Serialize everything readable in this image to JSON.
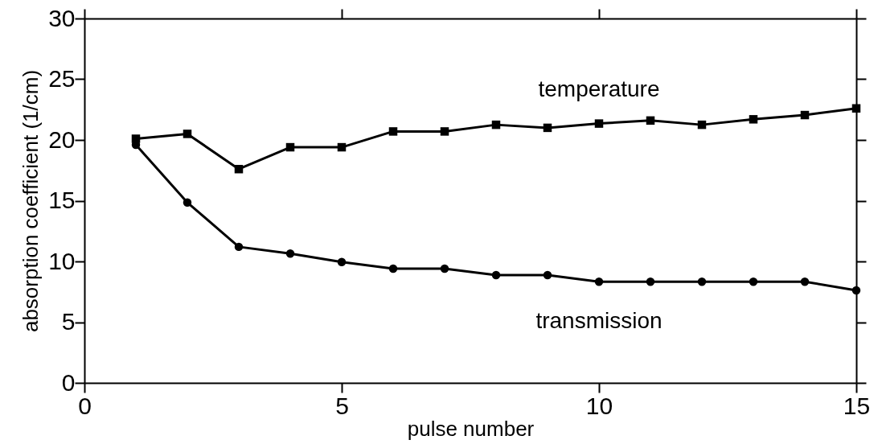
{
  "chart_data": {
    "type": "line",
    "xlabel": "pulse number",
    "ylabel": "absorption coefficient (1/cm)",
    "x": [
      1,
      2,
      3,
      4,
      5,
      6,
      7,
      8,
      9,
      10,
      11,
      12,
      13,
      14,
      15
    ],
    "series": [
      {
        "name": "temperature",
        "color": "#000000",
        "marker": "square",
        "values": [
          20.1,
          20.5,
          17.6,
          19.4,
          19.4,
          20.7,
          20.7,
          21.25,
          21.0,
          21.35,
          21.6,
          21.25,
          21.7,
          22.05,
          22.6
        ]
      },
      {
        "name": "transmission",
        "color": "#000000",
        "marker": "circle",
        "values": [
          19.6,
          14.85,
          11.2,
          10.65,
          9.95,
          9.4,
          9.4,
          8.87,
          8.87,
          8.33,
          8.33,
          8.33,
          8.33,
          8.33,
          7.62
        ]
      }
    ],
    "xlim": [
      0,
      15
    ],
    "xticks": [
      0,
      5,
      10,
      15
    ],
    "ylim": [
      0,
      30
    ],
    "yticks": [
      0,
      5,
      10,
      15,
      20,
      25,
      30
    ],
    "grid": false,
    "legend": false,
    "line_style": "solid"
  }
}
